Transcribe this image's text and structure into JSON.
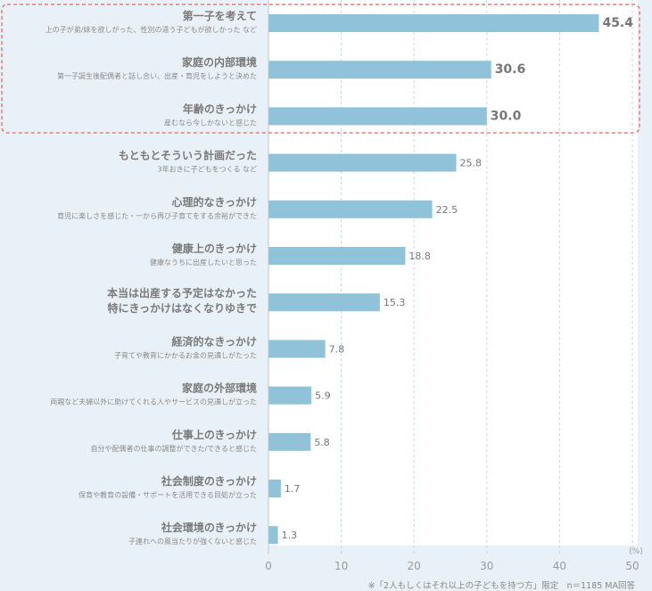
{
  "chart_data": {
    "type": "bar",
    "orientation": "horizontal",
    "xlim": [
      0,
      50
    ],
    "xticks": [
      "0",
      "10",
      "20",
      "30",
      "40",
      "50"
    ],
    "unit": "(%)",
    "categories": [
      {
        "title": [
          "第一子を考えて"
        ],
        "sub": "上の子が弟/妹を欲しがった、性別の違う子どもが欲しかった など",
        "value": 45.4,
        "label": "45.4",
        "highlight": true
      },
      {
        "title": [
          "家庭の内部環境"
        ],
        "sub": "第一子誕生後配偶者と話し合い、出産・育児をしようと決めた",
        "value": 30.6,
        "label": "30.6",
        "highlight": true
      },
      {
        "title": [
          "年齢のきっかけ"
        ],
        "sub": "産むなら今しかないと感じた",
        "value": 30.0,
        "label": "30.0",
        "highlight": true
      },
      {
        "title": [
          "もともとそういう計画だった"
        ],
        "sub": "3年おきに子どもをつくる など",
        "value": 25.8,
        "label": "25.8",
        "highlight": false
      },
      {
        "title": [
          "心理的なきっかけ"
        ],
        "sub": "育児に楽しさを感じた・一から再び子育てをする余裕ができた",
        "value": 22.5,
        "label": "22.5",
        "highlight": false
      },
      {
        "title": [
          "健康上のきっかけ"
        ],
        "sub": "健康なうちに出産したいと思った",
        "value": 18.8,
        "label": "18.8",
        "highlight": false
      },
      {
        "title": [
          "本当は出産する予定はなかった",
          "特にきっかけはなくなりゆきで"
        ],
        "sub": "",
        "value": 15.3,
        "label": "15.3",
        "highlight": false
      },
      {
        "title": [
          "経済的なきっかけ"
        ],
        "sub": "子育てや教育にかかるお金の見通しがたった",
        "value": 7.8,
        "label": "7.8",
        "highlight": false
      },
      {
        "title": [
          "家庭の外部環境"
        ],
        "sub": "両親など夫婦以外に助けてくれる人やサービスの見通しが立った",
        "value": 5.9,
        "label": "5.9",
        "highlight": false
      },
      {
        "title": [
          "仕事上のきっかけ"
        ],
        "sub": "自分や配偶者の仕事の調整ができた/できると感じた",
        "value": 5.8,
        "label": "5.8",
        "highlight": false
      },
      {
        "title": [
          "社会制度のきっかけ"
        ],
        "sub": "保育や教育の設備・サポートを活用できる目処が立った",
        "value": 1.7,
        "label": "1.7",
        "highlight": false
      },
      {
        "title": [
          "社会環境のきっかけ"
        ],
        "sub": "子連れへの風当たりが強くないと感じた",
        "value": 1.3,
        "label": "1.3",
        "highlight": false
      }
    ],
    "footnote": "※「2人もしくはそれ以上の子どもを持つ方」限定　n＝1185 MA回答",
    "colors": {
      "bar": "#90c3d9",
      "plot_bg": "#ffffff",
      "page_bg": "#e8f1f7",
      "highlight_border": "#e87a7a",
      "grid": "#c8d8e3"
    }
  }
}
